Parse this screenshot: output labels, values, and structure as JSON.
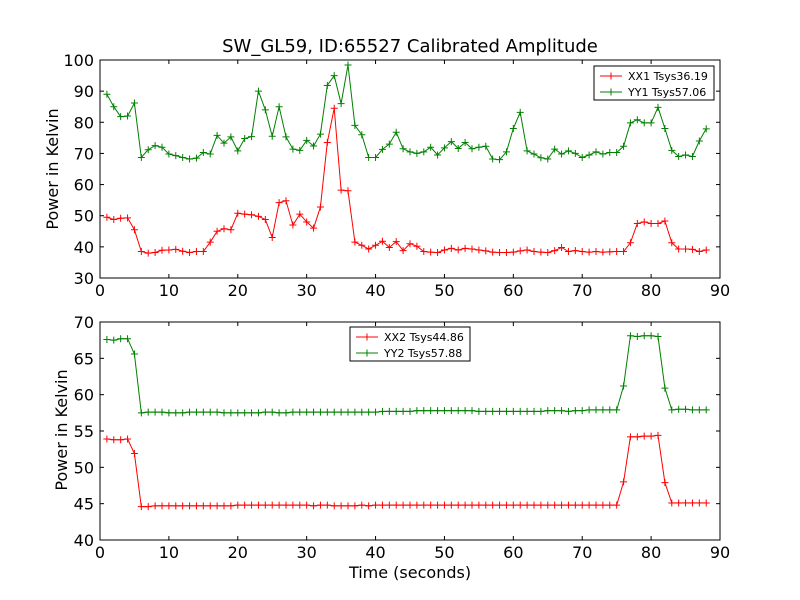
{
  "chart_data": [
    {
      "type": "line",
      "title": "SW_GL59, ID:65527 Calibrated Amplitude",
      "xlabel": "",
      "ylabel": "Power in Kelvin",
      "xlim": [
        0,
        90
      ],
      "ylim": [
        30,
        100
      ],
      "xticks": [
        0,
        10,
        20,
        30,
        40,
        50,
        60,
        70,
        80,
        90
      ],
      "yticks": [
        30,
        40,
        50,
        60,
        70,
        80,
        90,
        100
      ],
      "grid": false,
      "legend": "upper-right",
      "x": [
        1,
        2,
        3,
        4,
        5,
        6,
        7,
        8,
        9,
        10,
        11,
        12,
        13,
        14,
        15,
        16,
        17,
        18,
        19,
        20,
        21,
        22,
        23,
        24,
        25,
        26,
        27,
        28,
        29,
        30,
        31,
        32,
        33,
        34,
        35,
        36,
        37,
        38,
        39,
        40,
        41,
        42,
        43,
        44,
        45,
        46,
        47,
        48,
        49,
        50,
        51,
        52,
        53,
        54,
        55,
        56,
        57,
        58,
        59,
        60,
        61,
        62,
        63,
        64,
        65,
        66,
        67,
        68,
        69,
        70,
        71,
        72,
        73,
        74,
        75,
        76,
        77,
        78,
        79,
        80,
        81,
        82,
        83,
        84,
        85,
        86,
        87,
        88
      ],
      "series": [
        {
          "name": "XX1 Tsys36.19",
          "color": "#ff0000",
          "values": [
            49.5,
            48.8,
            49.2,
            49.3,
            45.5,
            38.5,
            38.0,
            38.2,
            38.9,
            39.0,
            39.2,
            38.6,
            38.2,
            38.5,
            38.5,
            41.5,
            45.0,
            45.8,
            45.5,
            50.8,
            50.5,
            50.3,
            49.8,
            48.8,
            43.0,
            54.2,
            54.8,
            47.0,
            50.5,
            48.0,
            46.0,
            52.8,
            73.5,
            84.5,
            58.2,
            58.0,
            41.5,
            40.5,
            39.3,
            40.5,
            41.8,
            39.8,
            41.7,
            38.8,
            41.0,
            40.2,
            38.5,
            38.3,
            38.2,
            39.0,
            39.5,
            39.0,
            39.5,
            39.3,
            39.0,
            38.7,
            38.3,
            38.2,
            38.2,
            38.3,
            38.7,
            39.0,
            38.5,
            38.3,
            38.2,
            38.8,
            39.8,
            38.5,
            38.8,
            38.5,
            38.3,
            38.5,
            38.3,
            38.4,
            38.5,
            38.5,
            41.3,
            47.5,
            48.0,
            47.5,
            47.5,
            48.3,
            41.3,
            39.3,
            39.3,
            39.2,
            38.5,
            39.0
          ]
        },
        {
          "name": "YY1 Tsys57.06",
          "color": "#008000",
          "values": [
            89.0,
            85.0,
            81.8,
            82.0,
            86.2,
            68.7,
            71.2,
            72.5,
            72.0,
            69.8,
            69.3,
            68.7,
            68.2,
            68.5,
            70.3,
            69.8,
            75.8,
            73.3,
            75.3,
            70.8,
            74.8,
            75.4,
            90.0,
            84.0,
            75.5,
            85.0,
            75.3,
            71.4,
            71.0,
            74.2,
            72.4,
            76.2,
            91.8,
            95.0,
            86.0,
            98.4,
            79.0,
            76.0,
            68.7,
            68.7,
            71.3,
            73.0,
            76.8,
            71.5,
            70.5,
            70.0,
            70.5,
            72.0,
            69.5,
            71.8,
            73.8,
            71.6,
            73.5,
            71.5,
            72.0,
            72.3,
            68.2,
            68.0,
            70.5,
            78.0,
            83.2,
            70.8,
            69.8,
            68.6,
            68.2,
            71.4,
            69.8,
            70.8,
            70.0,
            68.7,
            69.5,
            70.5,
            69.8,
            70.3,
            70.3,
            72.3,
            79.8,
            80.8,
            79.8,
            79.8,
            84.8,
            78.0,
            71.0,
            69.0,
            69.5,
            69.0,
            74.0,
            77.9
          ]
        }
      ]
    },
    {
      "type": "line",
      "title": "",
      "xlabel": "Time (seconds)",
      "ylabel": "Power in Kelvin",
      "xlim": [
        0,
        90
      ],
      "ylim": [
        40,
        70
      ],
      "xticks": [
        0,
        10,
        20,
        30,
        40,
        50,
        60,
        70,
        80,
        90
      ],
      "yticks": [
        40,
        45,
        50,
        55,
        60,
        65,
        70
      ],
      "grid": false,
      "legend": "upper-center",
      "x": [
        1,
        2,
        3,
        4,
        5,
        6,
        7,
        8,
        9,
        10,
        11,
        12,
        13,
        14,
        15,
        16,
        17,
        18,
        19,
        20,
        21,
        22,
        23,
        24,
        25,
        26,
        27,
        28,
        29,
        30,
        31,
        32,
        33,
        34,
        35,
        36,
        37,
        38,
        39,
        40,
        41,
        42,
        43,
        44,
        45,
        46,
        47,
        48,
        49,
        50,
        51,
        52,
        53,
        54,
        55,
        56,
        57,
        58,
        59,
        60,
        61,
        62,
        63,
        64,
        65,
        66,
        67,
        68,
        69,
        70,
        71,
        72,
        73,
        74,
        75,
        76,
        77,
        78,
        79,
        80,
        81,
        82,
        83,
        84,
        85,
        86,
        87,
        88
      ],
      "series": [
        {
          "name": "XX2 Tsys44.86",
          "color": "#ff0000",
          "values": [
            53.9,
            53.8,
            53.8,
            53.9,
            51.9,
            44.6,
            44.6,
            44.7,
            44.7,
            44.7,
            44.7,
            44.7,
            44.7,
            44.7,
            44.7,
            44.7,
            44.7,
            44.7,
            44.7,
            44.8,
            44.8,
            44.8,
            44.8,
            44.8,
            44.8,
            44.8,
            44.8,
            44.8,
            44.8,
            44.8,
            44.7,
            44.8,
            44.8,
            44.7,
            44.7,
            44.7,
            44.7,
            44.8,
            44.7,
            44.8,
            44.8,
            44.8,
            44.8,
            44.8,
            44.8,
            44.8,
            44.8,
            44.8,
            44.8,
            44.8,
            44.8,
            44.8,
            44.8,
            44.8,
            44.8,
            44.8,
            44.8,
            44.8,
            44.8,
            44.8,
            44.8,
            44.8,
            44.8,
            44.8,
            44.8,
            44.8,
            44.8,
            44.8,
            44.8,
            44.8,
            44.8,
            44.8,
            44.8,
            44.8,
            44.8,
            48.0,
            54.2,
            54.2,
            54.3,
            54.3,
            54.4,
            47.9,
            45.1,
            45.1,
            45.1,
            45.1,
            45.1,
            45.1
          ]
        },
        {
          "name": "YY2 Tsys57.88",
          "color": "#008000",
          "values": [
            67.6,
            67.5,
            67.7,
            67.7,
            65.6,
            57.5,
            57.6,
            57.6,
            57.6,
            57.5,
            57.5,
            57.5,
            57.6,
            57.6,
            57.6,
            57.6,
            57.6,
            57.5,
            57.5,
            57.5,
            57.5,
            57.5,
            57.5,
            57.6,
            57.6,
            57.5,
            57.5,
            57.6,
            57.6,
            57.6,
            57.6,
            57.6,
            57.6,
            57.6,
            57.6,
            57.6,
            57.6,
            57.6,
            57.6,
            57.6,
            57.7,
            57.7,
            57.7,
            57.7,
            57.7,
            57.8,
            57.8,
            57.8,
            57.8,
            57.8,
            57.8,
            57.8,
            57.8,
            57.8,
            57.7,
            57.7,
            57.7,
            57.7,
            57.7,
            57.7,
            57.7,
            57.7,
            57.7,
            57.7,
            57.8,
            57.8,
            57.8,
            57.7,
            57.8,
            57.8,
            57.9,
            57.9,
            57.9,
            57.9,
            57.9,
            61.2,
            68.1,
            68.0,
            68.1,
            68.1,
            68.0,
            60.9,
            57.9,
            58.0,
            58.0,
            57.9,
            57.9,
            57.9
          ]
        }
      ]
    }
  ]
}
